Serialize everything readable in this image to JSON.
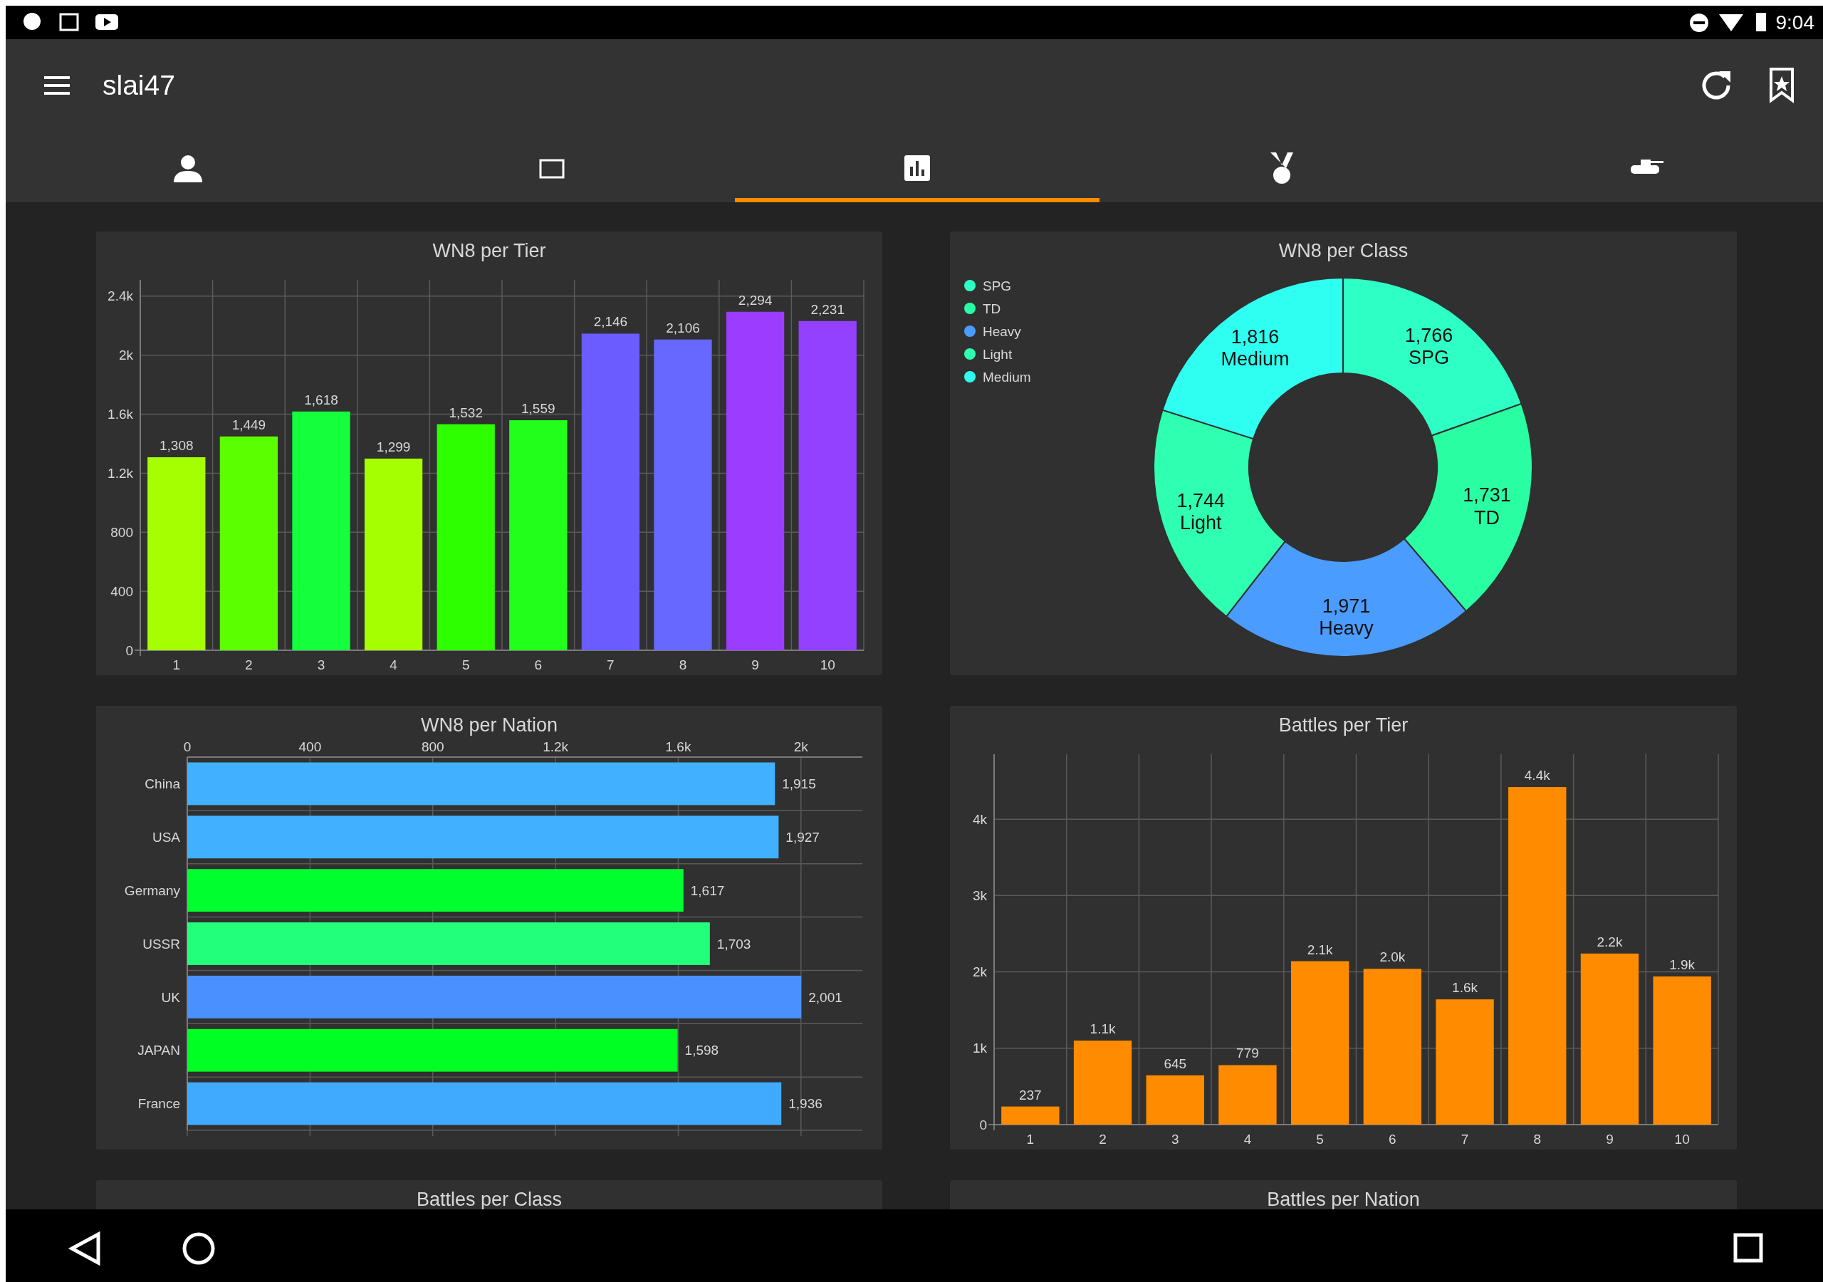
{
  "chart_data": [
    {
      "type": "other",
      "title": "slai47",
      "annotations": [
        "9:04"
      ]
    },
    {
      "type": "bar",
      "title": "WN8 per Tier",
      "categories": [
        "1",
        "2",
        "3",
        "4",
        "5",
        "6",
        "7",
        "8",
        "9",
        "10"
      ],
      "values": [
        1308,
        1449,
        1618,
        1299,
        1532,
        1559,
        2146,
        2106,
        2294,
        2231
      ],
      "colors": [
        "#a6ff00",
        "#5cff00",
        "#14ff3c",
        "#a6ff00",
        "#2eff00",
        "#22ff1a",
        "#6a5cff",
        "#6668ff",
        "#9b3cff",
        "#9440ff"
      ],
      "value_labels": [
        "1,308",
        "1,449",
        "1,618",
        "1,299",
        "1,532",
        "1,559",
        "2,146",
        "2,106",
        "2,294",
        "2,231"
      ],
      "ylim": [
        0,
        2510
      ],
      "yticks": [
        0,
        400,
        800,
        {
          "value": 1200,
          "label": "1.2k"
        },
        {
          "value": 1600,
          "label": "1.6k"
        },
        {
          "value": 2000,
          "label": "2k"
        },
        {
          "value": 2400,
          "label": "2.4k"
        }
      ],
      "grid": true
    },
    {
      "type": "donut",
      "title": "WN8 per Class",
      "categories": [
        "SPG",
        "TD",
        "Heavy",
        "Light",
        "Medium"
      ],
      "values": [
        1766,
        1731,
        1971,
        1744,
        1816
      ],
      "value_labels": [
        "1,766",
        "1,731",
        "1,971",
        "1,744",
        "1,816"
      ],
      "colors": [
        "#2effc4",
        "#29ffa2",
        "#4a9cff",
        "#2effb0",
        "#2efff0"
      ],
      "legend": "top left"
    },
    {
      "type": "bar",
      "orientation": "horizontal",
      "title": "WN8 per Nation",
      "categories": [
        "China",
        "USA",
        "Germany",
        "USSR",
        "UK",
        "JAPAN",
        "France"
      ],
      "values": [
        1915,
        1927,
        1617,
        1703,
        2001,
        1598,
        1936
      ],
      "colors": [
        "#40b0ff",
        "#40b0ff",
        "#00ff2e",
        "#22ff7a",
        "#4a90ff",
        "#00ff22",
        "#40aaff"
      ],
      "value_labels": [
        "1,915",
        "1,927",
        "1,617",
        "1,703",
        "2,001",
        "1,598",
        "1,936"
      ],
      "xlim": [
        0,
        2200
      ],
      "xticks": [
        0,
        400,
        800,
        {
          "value": 1200,
          "label": "1.2k"
        },
        {
          "value": 1600,
          "label": "1.6k"
        },
        {
          "value": 2000,
          "label": "2k"
        }
      ],
      "grid": true
    },
    {
      "type": "bar",
      "title": "Battles per Tier",
      "categories": [
        "1",
        "2",
        "3",
        "4",
        "5",
        "6",
        "7",
        "8",
        "9",
        "10"
      ],
      "values": [
        237,
        1100,
        645,
        779,
        2140,
        2040,
        1640,
        4420,
        2240,
        1940
      ],
      "value_labels": [
        "237",
        "1.1k",
        "645",
        "779",
        "2.1k",
        "2.0k",
        "1.6k",
        "4.4k",
        "2.2k",
        "1.9k"
      ],
      "color": "#ff8c00",
      "ylim": [
        0,
        4850
      ],
      "yticks": [
        0,
        {
          "value": 1000,
          "label": "1k"
        },
        {
          "value": 2000,
          "label": "2k"
        },
        {
          "value": 3000,
          "label": "3k"
        },
        {
          "value": 4000,
          "label": "4k"
        }
      ],
      "grid": true
    },
    {
      "type": "other",
      "title": "Battles per Class"
    },
    {
      "type": "other",
      "title": "Battles per Nation"
    }
  ]
}
